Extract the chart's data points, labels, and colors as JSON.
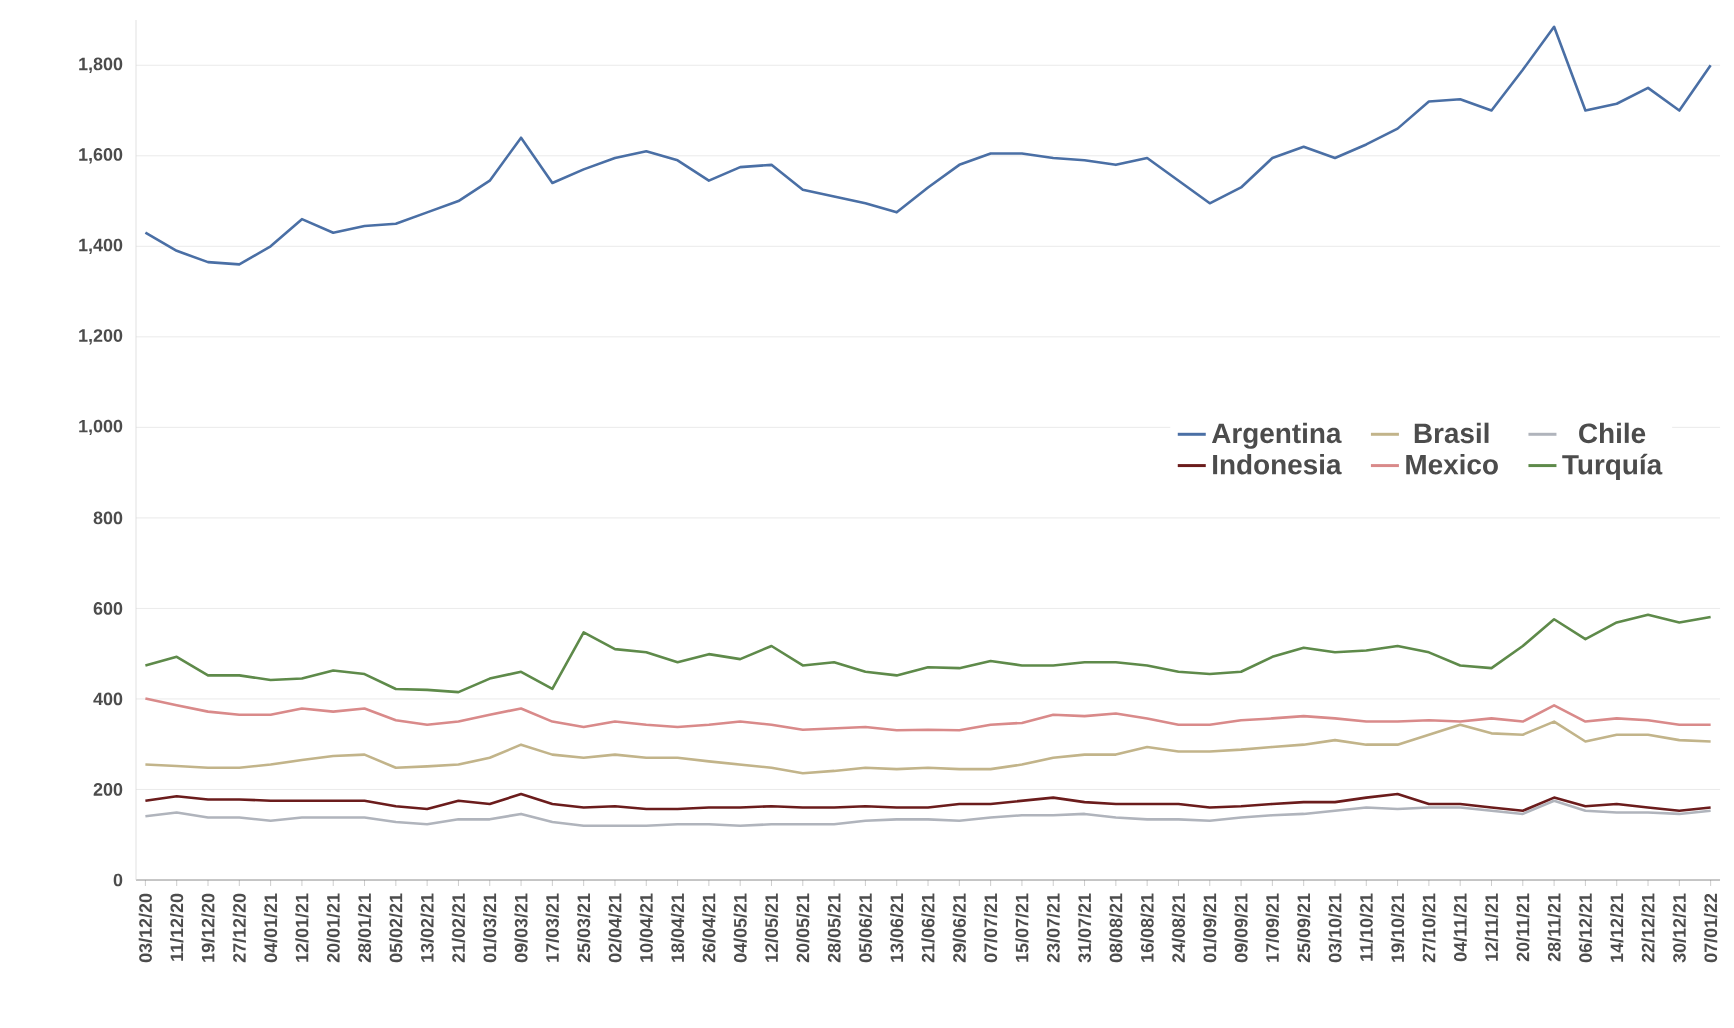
{
  "chart_data": {
    "type": "line",
    "categories": [
      "03/12/20",
      "11/12/20",
      "19/12/20",
      "27/12/20",
      "04/01/21",
      "12/01/21",
      "20/01/21",
      "28/01/21",
      "05/02/21",
      "13/02/21",
      "21/02/21",
      "01/03/21",
      "09/03/21",
      "17/03/21",
      "25/03/21",
      "02/04/21",
      "10/04/21",
      "18/04/21",
      "26/04/21",
      "04/05/21",
      "12/05/21",
      "20/05/21",
      "28/05/21",
      "05/06/21",
      "13/06/21",
      "21/06/21",
      "29/06/21",
      "07/07/21",
      "15/07/21",
      "23/07/21",
      "31/07/21",
      "08/08/21",
      "16/08/21",
      "24/08/21",
      "01/09/21",
      "09/09/21",
      "17/09/21",
      "25/09/21",
      "03/10/21",
      "11/10/21",
      "19/10/21",
      "27/10/21",
      "04/11/21",
      "12/11/21",
      "20/11/21",
      "28/11/21",
      "06/12/21",
      "14/12/21",
      "22/12/21",
      "30/12/21",
      "07/01/22"
    ],
    "series": [
      {
        "name": "Argentina",
        "color": "#4a6fa5",
        "values": [
          1430,
          1390,
          1365,
          1360,
          1400,
          1460,
          1430,
          1445,
          1450,
          1475,
          1500,
          1545,
          1640,
          1540,
          1570,
          1595,
          1610,
          1590,
          1545,
          1575,
          1580,
          1525,
          1510,
          1495,
          1475,
          1530,
          1580,
          1605,
          1605,
          1595,
          1590,
          1580,
          1595,
          1545,
          1495,
          1530,
          1595,
          1620,
          1595,
          1625,
          1660,
          1720,
          1725,
          1700,
          1790,
          1885,
          1700,
          1715,
          1750,
          1700,
          1800
        ]
      },
      {
        "name": "Brasil",
        "color": "#c2b48a",
        "values": [
          255,
          252,
          248,
          248,
          255,
          265,
          274,
          277,
          248,
          251,
          255,
          270,
          299,
          277,
          270,
          277,
          270,
          270,
          262,
          255,
          248,
          236,
          241,
          248,
          245,
          248,
          245,
          245,
          255,
          270,
          277,
          277,
          294,
          284,
          284,
          288,
          294,
          299,
          309,
          299,
          299,
          321,
          343,
          324,
          321,
          350,
          306,
          321,
          321,
          309,
          306
        ]
      },
      {
        "name": "Chile",
        "color": "#b0b4bc",
        "values": [
          141,
          149,
          138,
          138,
          131,
          138,
          138,
          138,
          128,
          123,
          134,
          134,
          146,
          128,
          120,
          120,
          120,
          123,
          123,
          120,
          123,
          123,
          123,
          131,
          134,
          134,
          131,
          138,
          143,
          143,
          146,
          138,
          134,
          134,
          131,
          138,
          143,
          146,
          153,
          160,
          157,
          160,
          160,
          153,
          146,
          175,
          153,
          149,
          149,
          146,
          153
        ]
      },
      {
        "name": "Indonesia",
        "color": "#6b1c1c",
        "values": [
          175,
          185,
          178,
          178,
          175,
          175,
          175,
          175,
          163,
          157,
          175,
          168,
          190,
          168,
          160,
          163,
          157,
          157,
          160,
          160,
          163,
          160,
          160,
          163,
          160,
          160,
          168,
          168,
          175,
          182,
          172,
          168,
          168,
          168,
          160,
          163,
          168,
          172,
          172,
          182,
          190,
          168,
          168,
          160,
          153,
          182,
          163,
          168,
          160,
          153,
          160
        ]
      },
      {
        "name": "Mexico",
        "color": "#d98a8a",
        "values": [
          401,
          386,
          372,
          365,
          365,
          379,
          372,
          379,
          353,
          343,
          350,
          365,
          379,
          350,
          338,
          350,
          343,
          338,
          343,
          350,
          343,
          332,
          335,
          338,
          331,
          332,
          331,
          343,
          347,
          365,
          362,
          368,
          357,
          343,
          343,
          353,
          357,
          362,
          357,
          350,
          350,
          353,
          350,
          357,
          350,
          386,
          350,
          357,
          353,
          343,
          343
        ]
      },
      {
        "name": "Turquía",
        "color": "#5e8a4a",
        "values": [
          474,
          493,
          452,
          452,
          442,
          445,
          463,
          455,
          422,
          420,
          415,
          445,
          460,
          422,
          547,
          510,
          503,
          481,
          499,
          488,
          517,
          474,
          481,
          460,
          452,
          470,
          468,
          484,
          474,
          474,
          481,
          481,
          474,
          460,
          455,
          460,
          493,
          513,
          503,
          507,
          517,
          503,
          474,
          468,
          517,
          576,
          532,
          569,
          586,
          569,
          581
        ]
      }
    ],
    "ylim": [
      0,
      1900
    ],
    "yticks": [
      0,
      {
        "value": 200,
        "label": "200"
      },
      {
        "value": 400,
        "label": "400"
      },
      {
        "value": 600,
        "label": "600"
      },
      {
        "value": 800,
        "label": "800"
      },
      {
        "value": 1000,
        "label": "1,000"
      },
      {
        "value": 1200,
        "label": "1,200"
      },
      {
        "value": 1400,
        "label": "1,400"
      },
      {
        "value": 1600,
        "label": "1,600"
      },
      {
        "value": 1800,
        "label": "1,800"
      }
    ],
    "grid": "y",
    "legend": "center right",
    "line_style": "solid",
    "marker": "none"
  }
}
